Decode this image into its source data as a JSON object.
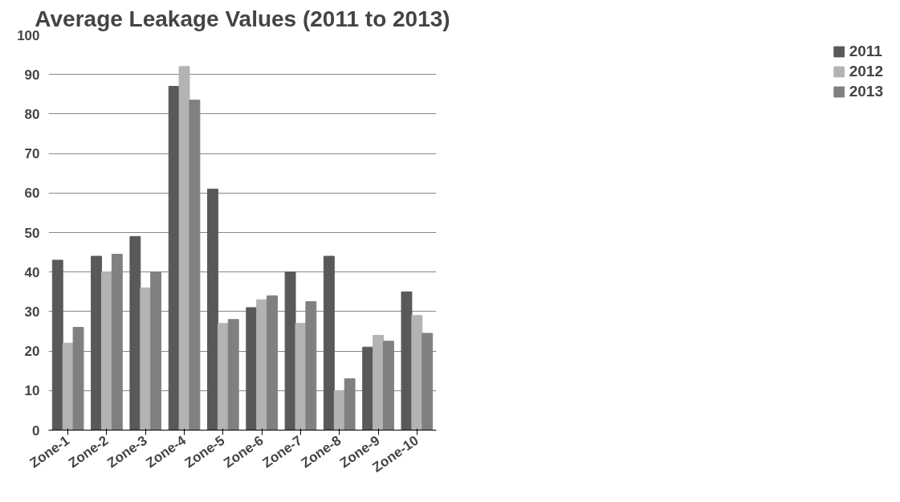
{
  "chart_data": {
    "type": "bar",
    "title": "Average Leakage Values (2011 to 2013)",
    "categories": [
      "Zone-1",
      "Zone-2",
      "Zone-3",
      "Zone-4",
      "Zone-5",
      "Zone-6",
      "Zone-7",
      "Zone-8",
      "Zone-9",
      "Zone-10"
    ],
    "series": [
      {
        "name": "2011",
        "color": "#595959",
        "values": [
          43,
          44,
          49,
          87,
          61,
          31,
          40,
          44,
          21,
          35
        ]
      },
      {
        "name": "2012",
        "color": "#b3b3b3",
        "values": [
          22,
          40,
          36,
          92,
          27,
          33,
          27,
          10,
          24,
          29
        ]
      },
      {
        "name": "2013",
        "color": "#808080",
        "values": [
          26,
          44.5,
          40,
          83.5,
          28,
          34,
          32.5,
          13,
          22.5,
          24.5
        ]
      }
    ],
    "ylim": [
      0,
      100
    ],
    "yticks": [
      0,
      10,
      20,
      30,
      40,
      50,
      60,
      70,
      80,
      90,
      100
    ],
    "grid": "y",
    "legend": "right"
  }
}
